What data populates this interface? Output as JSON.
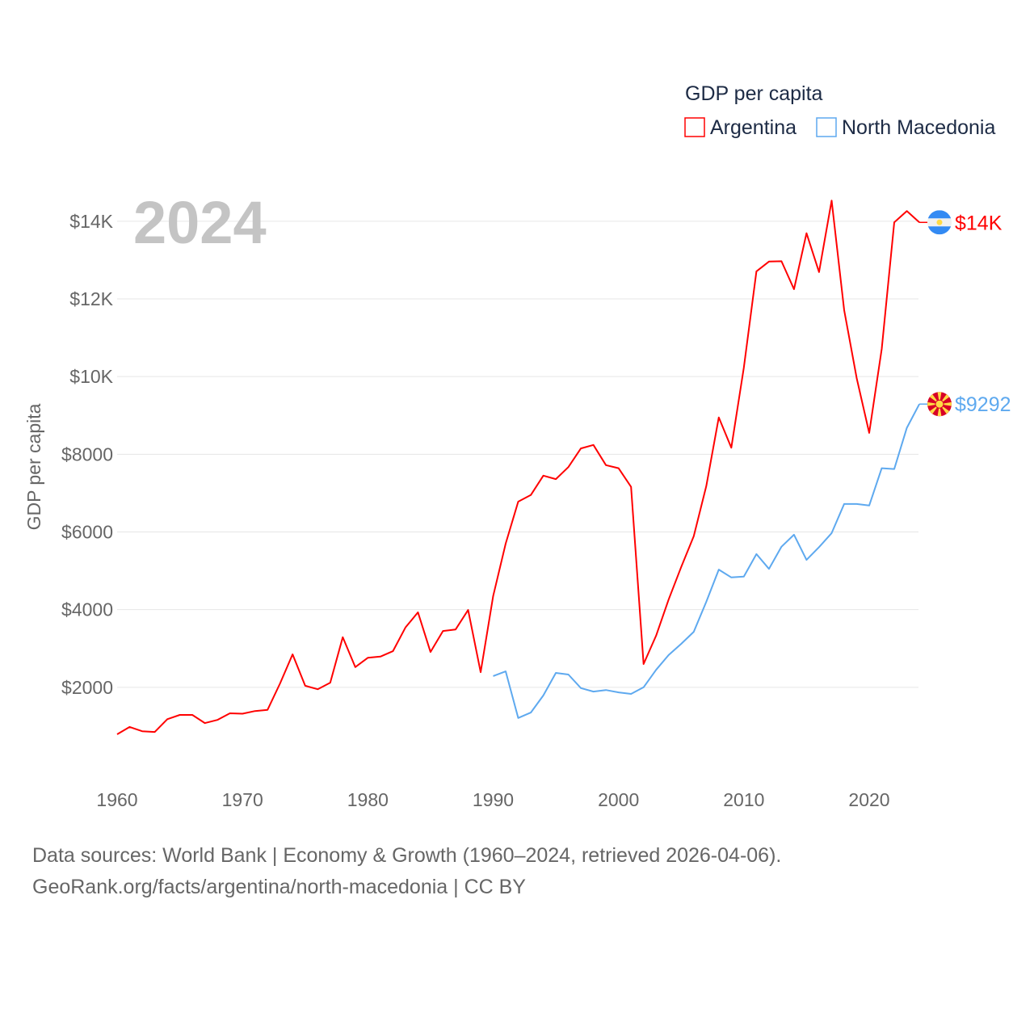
{
  "chart_data": {
    "type": "line",
    "title": "GDP per capita",
    "ylabel": "GDP per capita",
    "xlabel": "",
    "year_label": "2024",
    "xlim": [
      1960,
      2024
    ],
    "ylim": [
      0,
      15000
    ],
    "x_ticks": [
      1960,
      1970,
      1980,
      1990,
      2000,
      2010,
      2020
    ],
    "x_tick_labels": [
      "1960",
      "1970",
      "1980",
      "1990",
      "2000",
      "2010",
      "2020"
    ],
    "y_ticks": [
      2000,
      4000,
      6000,
      8000,
      10000,
      12000,
      14000
    ],
    "y_tick_labels": [
      "$2000",
      "$4000",
      "$6000",
      "$8000",
      "$10K",
      "$12K",
      "$14K"
    ],
    "grid": true,
    "legend_position": "top-right",
    "series": [
      {
        "name": "Argentina",
        "color": "#ff0000",
        "flag": "argentina-flag",
        "end_label": "$14K",
        "start_year": 1960,
        "values": [
          790,
          980,
          870,
          850,
          1180,
          1290,
          1290,
          1080,
          1160,
          1330,
          1320,
          1390,
          1420,
          2100,
          2850,
          2040,
          1950,
          2120,
          3290,
          2520,
          2760,
          2790,
          2930,
          3540,
          3930,
          2910,
          3450,
          3490,
          3990,
          2390,
          4350,
          5700,
          6780,
          6950,
          7450,
          7360,
          7670,
          8150,
          8240,
          7720,
          7640,
          7160,
          2600,
          3330,
          4260,
          5100,
          5890,
          7180,
          8950,
          8170,
          10230,
          12710,
          12960,
          12970,
          12250,
          13690,
          12690,
          14530,
          11710,
          9960,
          8550,
          10710,
          13970,
          14260,
          13970
        ]
      },
      {
        "name": "North Macedonia",
        "color": "#5ea9ef",
        "flag": "north-macedonia-flag",
        "end_label": "$9292",
        "start_year": 1990,
        "values": [
          2290,
          2410,
          1210,
          1350,
          1790,
          2370,
          2330,
          1980,
          1890,
          1930,
          1870,
          1830,
          2000,
          2450,
          2830,
          3120,
          3430,
          4200,
          5030,
          4830,
          4850,
          5430,
          5050,
          5620,
          5930,
          5280,
          5610,
          5970,
          6720,
          6720,
          6680,
          7640,
          7620,
          8680,
          9292
        ]
      }
    ]
  },
  "sources": {
    "line1": "Data sources: World Bank | Economy & Growth (1960–2024, retrieved 2026-04-06).",
    "line2": "GeoRank.org/facts/argentina/north-macedonia | CC BY"
  }
}
